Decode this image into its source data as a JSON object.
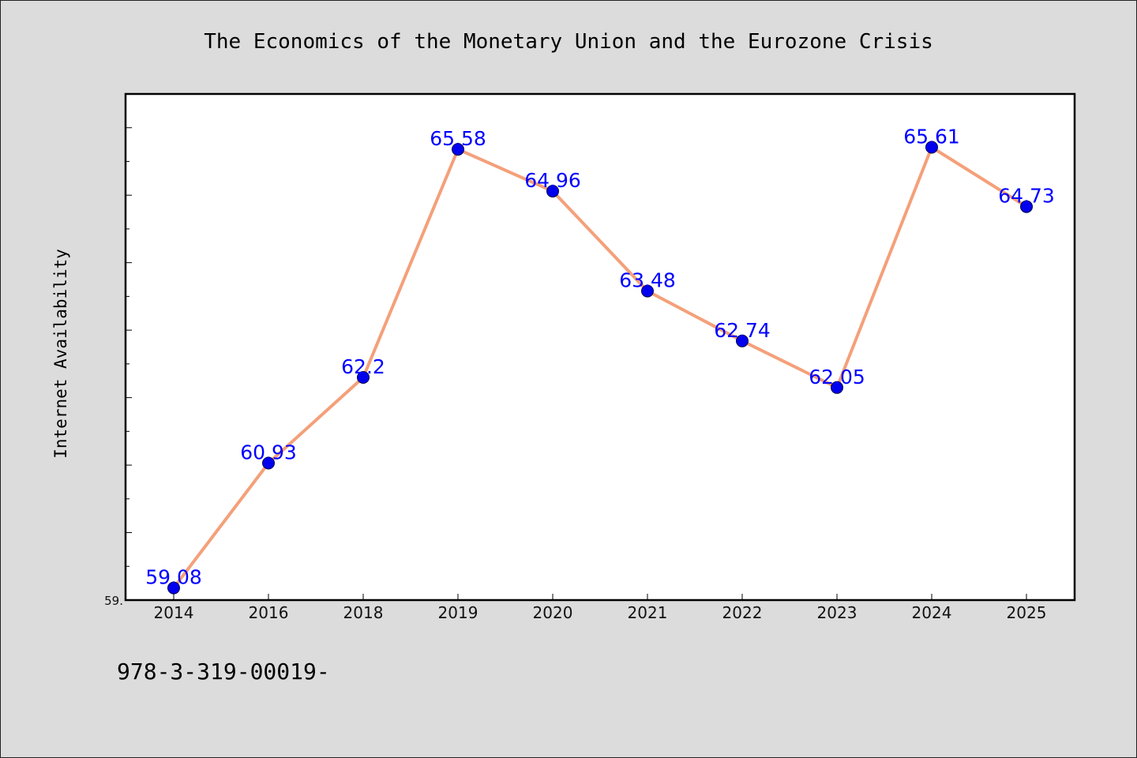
{
  "chart_data": {
    "type": "line",
    "title": "The Economics of the Monetary Union and the Eurozone Crisis",
    "xlabel": "",
    "ylabel": "Internet Availability",
    "categories": [
      "2014",
      "2016",
      "2018",
      "2019",
      "2020",
      "2021",
      "2022",
      "2023",
      "2024",
      "2025"
    ],
    "values": [
      59.08,
      60.93,
      62.2,
      65.58,
      64.96,
      63.48,
      62.74,
      62.05,
      65.61,
      64.73
    ],
    "data_labels": [
      "59.08",
      "60.93",
      "62.2",
      "65.58",
      "64.96",
      "63.48",
      "62.74",
      "62.05",
      "65.61",
      "64.73"
    ],
    "ytick_label": "59.",
    "ylim": [
      58.9,
      66.4
    ],
    "grid": false,
    "line_color": "#f4a07a",
    "marker_color": "#0000ee",
    "label_color": "#0000ff"
  },
  "footer": {
    "text": "978-3-319-00019-"
  }
}
